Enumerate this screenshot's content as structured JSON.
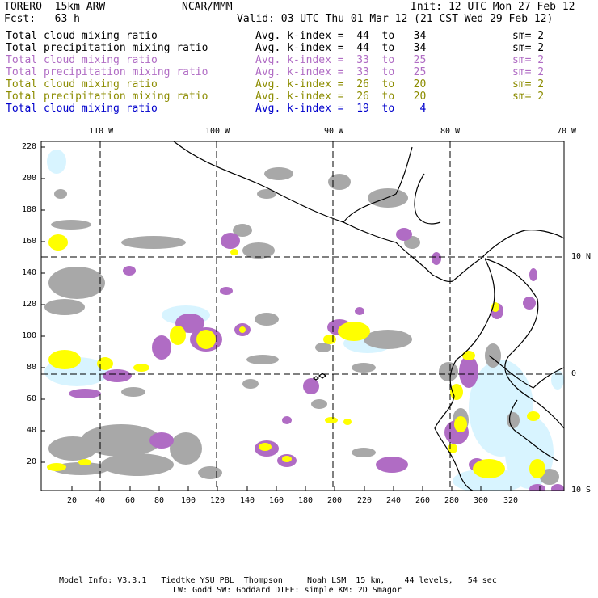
{
  "header": {
    "model": "TORERO  15km ARW",
    "org": "NCAR/MMM",
    "init": "Init: 12 UTC Mon 27 Feb 12",
    "fcst": "Fcst:   63 h",
    "valid": "Valid: 03 UTC Thu 01 Mar 12 (21 CST Wed 29 Feb 12)"
  },
  "legend": [
    {
      "field": "Total cloud mixing ratio",
      "kidx": "Avg. k-index =  44  to   34",
      "sm": "sm= 2",
      "color": "#000000"
    },
    {
      "field": "Total precipitation mixing ratio",
      "kidx": "Avg. k-index =  44  to   34",
      "sm": "sm= 2",
      "color": "#000000"
    },
    {
      "field": "Total cloud mixing ratio",
      "kidx": "Avg. k-index =  33  to   25",
      "sm": "sm= 2",
      "color": "#b06cc4"
    },
    {
      "field": "Total precipitation mixing ratio",
      "kidx": "Avg. k-index =  33  to   25",
      "sm": "sm= 2",
      "color": "#b06cc4"
    },
    {
      "field": "Total cloud mixing ratio",
      "kidx": "Avg. k-index =  26  to   20",
      "sm": "sm= 2",
      "color": "#8c8c00"
    },
    {
      "field": "Total precipitation mixing ratio",
      "kidx": "Avg. k-index =  26  to   20",
      "sm": "sm= 2",
      "color": "#8c8c00"
    },
    {
      "field": "Total cloud mixing ratio",
      "kidx": "Avg. k-index =  19  to    4",
      "sm": "",
      "color": "#0000cc"
    }
  ],
  "map": {
    "top_lon_labels": [
      "110 W",
      "100 W",
      "90 W",
      "80 W",
      "70 W"
    ],
    "right_lat_labels": [
      "10 N",
      "0",
      "10 S"
    ],
    "y_ticks": [
      "220",
      "200",
      "180",
      "160",
      "140",
      "120",
      "100",
      "80",
      "60",
      "40",
      "20"
    ],
    "x_ticks": [
      "20",
      "40",
      "60",
      "80",
      "100",
      "120",
      "140",
      "160",
      "180",
      "200",
      "220",
      "240",
      "260",
      "280",
      "300",
      "320"
    ],
    "colors": {
      "gray": "#a8a8a8",
      "purple": "#b06cc4",
      "yellow": "#ffff00",
      "lightblue": "#d8f4ff"
    }
  },
  "footer": {
    "line1": "Model Info: V3.3.1   Tiedtke YSU PBL  Thompson     Noah LSM  15 km,    44 levels,   54 sec",
    "line2": "LW: Godd SW: Goddard DIFF: simple KM: 2D Smagor"
  }
}
